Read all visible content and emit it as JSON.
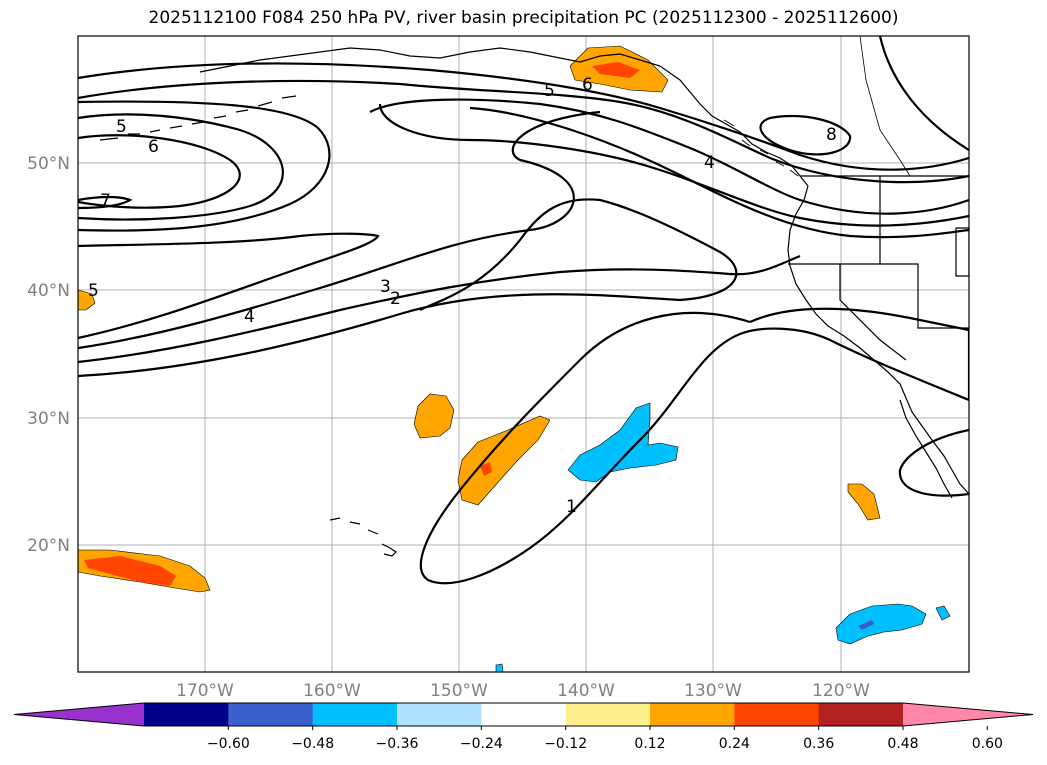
{
  "title": "2025112100 F084 250 hPa PV, river basin precipitation PC (2025112300 - 2025112600)",
  "lat_labels": [
    "50°N",
    "40°N",
    "30°N",
    "20°N"
  ],
  "lon_labels": [
    "170°W",
    "160°W",
    "150°W",
    "140°W",
    "130°W",
    "120°W"
  ],
  "contour_labels": [
    "5",
    "6",
    "7",
    "5",
    "4",
    "3",
    "2",
    "5",
    "6",
    "4",
    "8",
    "1"
  ],
  "colorbar": {
    "ticks": [
      "−0.60",
      "−0.48",
      "−0.36",
      "−0.24",
      "−0.12",
      "0.12",
      "0.24",
      "0.36",
      "0.48",
      "0.60"
    ],
    "colors": [
      "#9932cc",
      "#00008b",
      "#3a5fcd",
      "#00bfff",
      "#b0e2ff",
      "#ffffff",
      "#fff08f",
      "#ffa500",
      "#ff4500",
      "#b22222",
      "#ff88aa"
    ]
  },
  "colors": {
    "positive_low": "#ffa500",
    "positive_mid": "#ff4500",
    "negative": "#00bfff",
    "negative_strong": "#3a5fcd",
    "grid": "#b0b0b0"
  },
  "icons": [
    "coastline-icon"
  ]
}
